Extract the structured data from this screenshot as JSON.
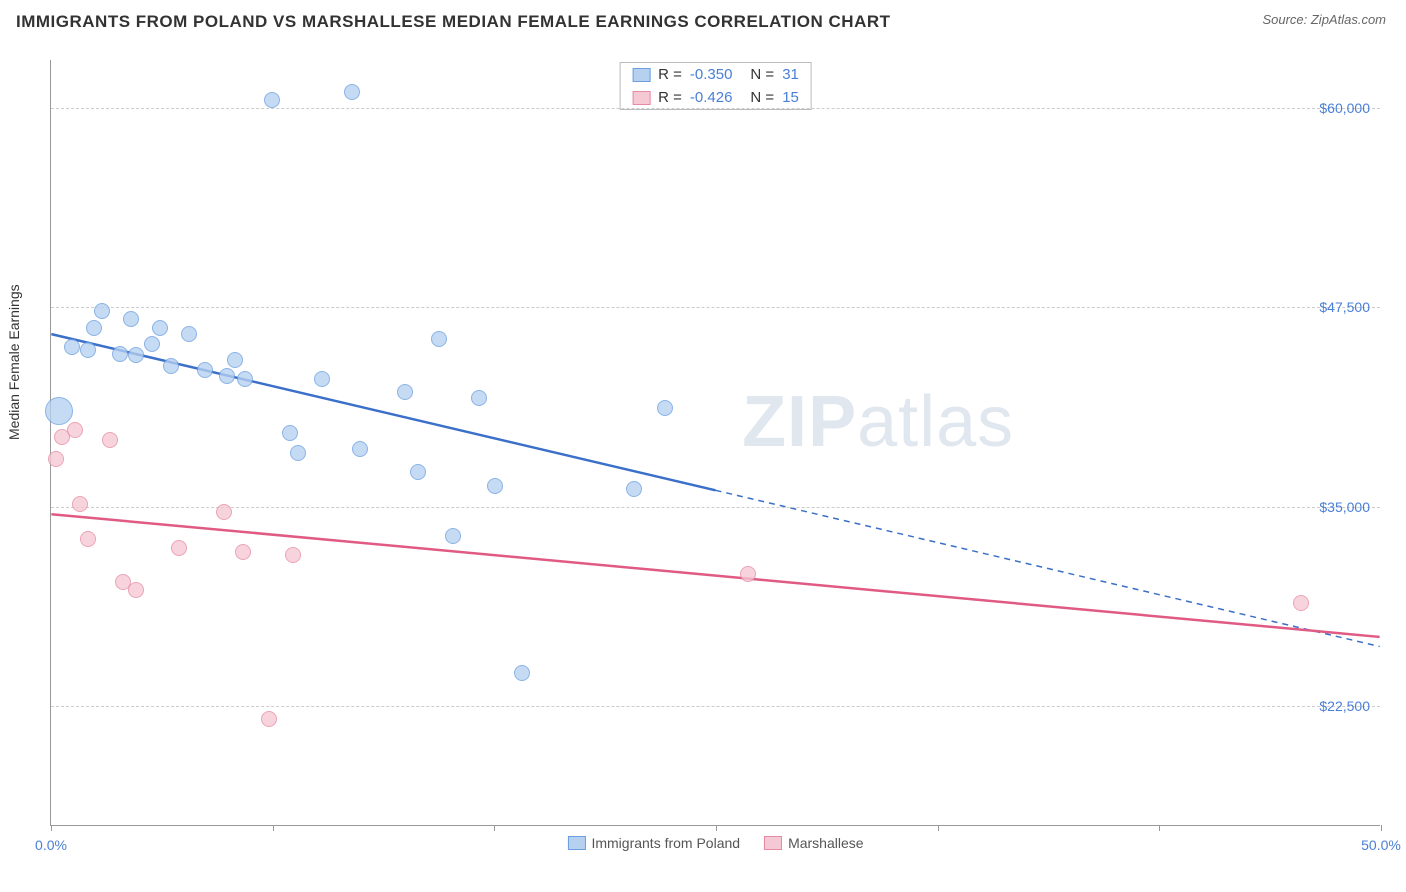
{
  "title": "IMMIGRANTS FROM POLAND VS MARSHALLESE MEDIAN FEMALE EARNINGS CORRELATION CHART",
  "source": "Source: ZipAtlas.com",
  "ylabel": "Median Female Earnings",
  "watermark_a": "ZIP",
  "watermark_b": "atlas",
  "chart": {
    "type": "scatter-correlation",
    "xlim": [
      0,
      50
    ],
    "ylim": [
      15000,
      63000
    ],
    "x_unit": "%",
    "background_color": "#ffffff",
    "grid_color": "#cccccc",
    "axis_color": "#999999",
    "tick_label_color": "#4a7fd8",
    "xtick_positions": [
      0,
      8.33,
      16.67,
      25,
      33.33,
      41.67,
      50
    ],
    "xtick_labels": {
      "0": "0.0%",
      "50": "50.0%"
    },
    "ytick_positions": [
      22500,
      35000,
      47500,
      60000
    ],
    "ytick_labels": {
      "22500": "$22,500",
      "35000": "$35,000",
      "47500": "$47,500",
      "60000": "$60,000"
    },
    "series": [
      {
        "name": "Immigrants from Poland",
        "color_fill": "#b6d0f0",
        "color_stroke": "#6b9fe0",
        "line_color": "#3b6fc9",
        "R": "-0.350",
        "N": "31",
        "trend": {
          "x1": 0,
          "y1": 45800,
          "x2": 25,
          "y2": 36000,
          "dash_x2": 50,
          "dash_y2": 26200
        },
        "points": [
          {
            "x": 0.3,
            "y": 41000,
            "r": 14
          },
          {
            "x": 0.8,
            "y": 45000,
            "r": 8
          },
          {
            "x": 1.4,
            "y": 44800,
            "r": 8
          },
          {
            "x": 1.9,
            "y": 47300,
            "r": 8
          },
          {
            "x": 1.6,
            "y": 46200,
            "r": 8
          },
          {
            "x": 2.6,
            "y": 44600,
            "r": 8
          },
          {
            "x": 3.0,
            "y": 46800,
            "r": 8
          },
          {
            "x": 3.2,
            "y": 44500,
            "r": 8
          },
          {
            "x": 3.8,
            "y": 45200,
            "r": 8
          },
          {
            "x": 4.1,
            "y": 46200,
            "r": 8
          },
          {
            "x": 4.5,
            "y": 43800,
            "r": 8
          },
          {
            "x": 5.2,
            "y": 45800,
            "r": 8
          },
          {
            "x": 5.8,
            "y": 43600,
            "r": 8
          },
          {
            "x": 6.6,
            "y": 43200,
            "r": 8
          },
          {
            "x": 6.9,
            "y": 44200,
            "r": 8
          },
          {
            "x": 7.3,
            "y": 43000,
            "r": 8
          },
          {
            "x": 8.3,
            "y": 60500,
            "r": 8
          },
          {
            "x": 9.0,
            "y": 39600,
            "r": 8
          },
          {
            "x": 9.3,
            "y": 38400,
            "r": 8
          },
          {
            "x": 10.2,
            "y": 43000,
            "r": 8
          },
          {
            "x": 11.3,
            "y": 61000,
            "r": 8
          },
          {
            "x": 11.6,
            "y": 38600,
            "r": 8
          },
          {
            "x": 13.3,
            "y": 42200,
            "r": 8
          },
          {
            "x": 13.8,
            "y": 37200,
            "r": 8
          },
          {
            "x": 14.6,
            "y": 45500,
            "r": 8
          },
          {
            "x": 15.1,
            "y": 33200,
            "r": 8
          },
          {
            "x": 16.1,
            "y": 41800,
            "r": 8
          },
          {
            "x": 16.7,
            "y": 36300,
            "r": 8
          },
          {
            "x": 17.7,
            "y": 24600,
            "r": 8
          },
          {
            "x": 21.9,
            "y": 36100,
            "r": 8
          },
          {
            "x": 23.1,
            "y": 41200,
            "r": 8
          }
        ]
      },
      {
        "name": "Marshallese",
        "color_fill": "#f5c9d4",
        "color_stroke": "#e78aa3",
        "line_color": "#e05a84",
        "R": "-0.426",
        "N": "15",
        "trend": {
          "x1": 0,
          "y1": 34500,
          "x2": 50,
          "y2": 26800
        },
        "points": [
          {
            "x": 0.2,
            "y": 38000,
            "r": 8
          },
          {
            "x": 0.4,
            "y": 39400,
            "r": 8
          },
          {
            "x": 0.9,
            "y": 39800,
            "r": 8
          },
          {
            "x": 1.1,
            "y": 35200,
            "r": 8
          },
          {
            "x": 1.4,
            "y": 33000,
            "r": 8
          },
          {
            "x": 2.2,
            "y": 39200,
            "r": 8
          },
          {
            "x": 2.7,
            "y": 30300,
            "r": 8
          },
          {
            "x": 3.2,
            "y": 29800,
            "r": 8
          },
          {
            "x": 4.8,
            "y": 32400,
            "r": 8
          },
          {
            "x": 6.5,
            "y": 34700,
            "r": 8
          },
          {
            "x": 7.2,
            "y": 32200,
            "r": 8
          },
          {
            "x": 8.2,
            "y": 21700,
            "r": 8
          },
          {
            "x": 9.1,
            "y": 32000,
            "r": 8
          },
          {
            "x": 26.2,
            "y": 30800,
            "r": 8
          },
          {
            "x": 47.0,
            "y": 29000,
            "r": 8
          }
        ]
      }
    ]
  },
  "bottom_legend": [
    {
      "label": "Immigrants from Poland",
      "fill": "#b6d0f0",
      "stroke": "#6b9fe0"
    },
    {
      "label": "Marshallese",
      "fill": "#f5c9d4",
      "stroke": "#e78aa3"
    }
  ]
}
